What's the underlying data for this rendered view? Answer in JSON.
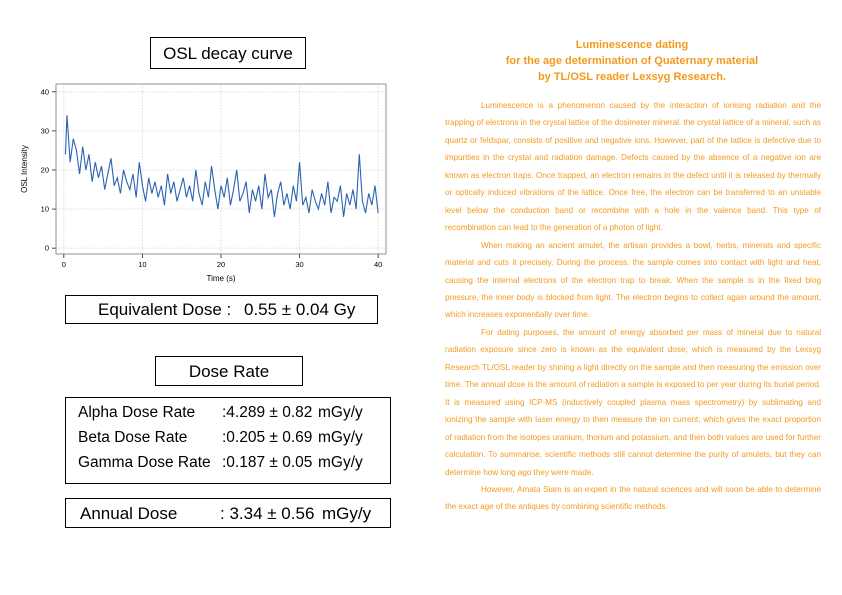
{
  "chart_data": {
    "type": "line",
    "title": "OSL decay curve",
    "xlabel": "Time (s)",
    "ylabel": "OSL Intensity",
    "x": [
      0.2,
      0.4,
      0.8,
      1.2,
      1.6,
      2,
      2.4,
      2.8,
      3.2,
      3.6,
      4,
      4.4,
      4.8,
      5.2,
      5.6,
      6,
      6.4,
      6.8,
      7.2,
      7.6,
      8,
      8.4,
      8.8,
      9.2,
      9.6,
      10,
      10.4,
      10.8,
      11.2,
      11.6,
      12,
      12.4,
      12.8,
      13.2,
      13.6,
      14,
      14.4,
      14.8,
      15.2,
      15.6,
      16,
      16.4,
      16.8,
      17.2,
      17.6,
      18,
      18.4,
      18.8,
      19.2,
      19.6,
      20,
      20.4,
      20.8,
      21.2,
      21.6,
      22,
      22.4,
      22.8,
      23.2,
      23.6,
      24,
      24.4,
      24.8,
      25.2,
      25.6,
      26,
      26.4,
      26.8,
      27.2,
      27.6,
      28,
      28.4,
      28.8,
      29.2,
      29.6,
      30,
      30.4,
      30.8,
      31.2,
      31.6,
      32,
      32.4,
      32.8,
      33.2,
      33.6,
      34,
      34.4,
      34.8,
      35.2,
      35.6,
      36,
      36.4,
      36.8,
      37.2,
      37.6,
      38,
      38.4,
      38.8,
      39.2,
      39.6,
      40
    ],
    "series": [
      {
        "name": "OSL",
        "color": "#2c62b4",
        "values": [
          24,
          34,
          22,
          28,
          25,
          19,
          26,
          20,
          24,
          17,
          22,
          18,
          21,
          15,
          19,
          23,
          16,
          18,
          14,
          20,
          17,
          15,
          19,
          13,
          22,
          16,
          12,
          18,
          14,
          17,
          13,
          16,
          11,
          19,
          14,
          17,
          12,
          15,
          18,
          13,
          16,
          12,
          20,
          14,
          11,
          17,
          13,
          21,
          15,
          10,
          16,
          13,
          18,
          11,
          15,
          20,
          12,
          14,
          17,
          9,
          15,
          12,
          16,
          10,
          19,
          13,
          15,
          8,
          14,
          17,
          11,
          14,
          10,
          16,
          12,
          22,
          11,
          13,
          9,
          15,
          12,
          10,
          14,
          11,
          17,
          9,
          13,
          12,
          16,
          8,
          14,
          11,
          15,
          10,
          24,
          12,
          9,
          14,
          11,
          16,
          9
        ]
      }
    ],
    "xlim": [
      -1,
      41
    ],
    "ylim": [
      -1.5,
      42
    ],
    "xticks": [
      0,
      10,
      20,
      30,
      40
    ],
    "yticks": [
      0,
      10,
      20,
      30,
      40
    ],
    "grid": true
  },
  "equivalent_dose": {
    "label": "Equivalent Dose :",
    "value": "0.55 ± 0.04 Gy"
  },
  "dose_rate": {
    "title": "Dose Rate",
    "rows": [
      [
        "Alpha Dose Rate",
        ":4.289 ± 0.82",
        "mGy/y"
      ],
      [
        "Beta Dose Rate",
        ":0.205 ± 0.69",
        "mGy/y"
      ],
      [
        "Gamma Dose Rate",
        ":0.187 ± 0.05",
        "mGy/y"
      ]
    ]
  },
  "annual_dose": {
    "label": "Annual Dose",
    "value": ": 3.34 ± 0.56",
    "unit": "mGy/y"
  },
  "article": {
    "title": [
      "Luminescence dating",
      "for the age determination of Quaternary material",
      "by TL/OSL reader Lexsyg Research."
    ],
    "paragraphs": [
      "Luminescence is a phenomenon caused by the interaction of ionising radiation and the trapping of electrons in the crystal lattice of the dosimeter mineral. the crystal lattice of a mineral, such as quartz or feldspar, consists of positive and negative ions. However, part of the lattice is defective due to impurities in the crystal and radiation damage. Defects caused by the absence of a negative ion are known as electron traps. Once trapped, an electron remains in the defect until it is released by thermally or optically induced vibrations of the lattice. Once free, the electron can be transferred to an unstable level below the conduction band or recombine with a hole in the valence band. This type of recombination can lead to the generation of a photon of light.",
      "When making an ancient amulet, the artisan provides a bowl, herbs, minerals and specific material and cuts it precisely. During the process, the sample comes into contact with light and heat, causing the internal electrons of the electron trap to break. When the sample is in the fixed blog pressure, the inner body is blocked from light. The electron begins to collect again around the amount, which increases exponentially over time.",
      "For dating purposes, the amount of energy absorbed per mass of mineral due to natural radiation exposure since zero is known as the equivalent dose, which is measured by the Lexsyg Research TL/OSL reader by shining a light directly on the sample and then measuring the emission over time. The annual dose is the amount of radiation a sample is exposed to per year during its burial period. It is measured using ICP-MS (inductively coupled plasma mass spectrometry) by sublimating and ionizing the sample with laser energy to then measure the ion current, which gives the exact proportion of radiation from the isotopes uranium, thorium and potassium, and then both values are used for further calculation. To summarise, scientific methods still cannot determine the purity of amulets, but they can determine how long ago they were made.",
      "However, Amata Siam is an expert in the natural sciences and will soon be able to determine the exact age of the antiques by combining scientific methods."
    ]
  }
}
